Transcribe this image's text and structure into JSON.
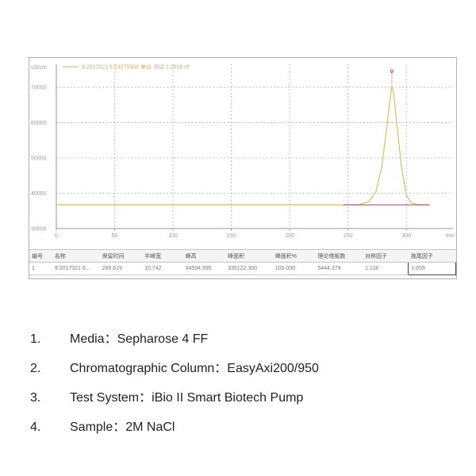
{
  "chart_data": {
    "type": "line",
    "legend": [
      "9:2017021 6 13275504 单位 测试 1 2016.rtf"
    ],
    "ylabel": "uS/cm",
    "xlabel": "min",
    "y_ticks": [
      "70000",
      "60000",
      "50000",
      "40000",
      "30000"
    ],
    "y_tick_values": [
      70000,
      60000,
      50000,
      40000,
      30000
    ],
    "x_ticks": [
      "0",
      "50",
      "100",
      "150",
      "200",
      "250",
      "300"
    ],
    "x_tick_values": [
      0,
      50,
      100,
      150,
      200,
      250,
      300
    ],
    "xlim": [
      0,
      340
    ],
    "ylim": [
      30000,
      76500
    ],
    "grid": true,
    "series": [
      {
        "name": "9:2017021 6 13275504 单位 测试 1 2016.rtf",
        "color": "#d8c570",
        "x": [
          0,
          248,
          260,
          268,
          274,
          279,
          283,
          286,
          287.6,
          289,
          292,
          296,
          300,
          304,
          310,
          320
        ],
        "y": [
          36700,
          36700,
          36800,
          37600,
          40500,
          47500,
          58000,
          66500,
          70500,
          68500,
          59000,
          47000,
          39500,
          37300,
          36750,
          36700
        ]
      },
      {
        "name": "baseline",
        "color": "#b06060",
        "x": [
          246,
          320
        ],
        "y": [
          36700,
          36700
        ]
      }
    ],
    "peak_markers": [
      {
        "x": 287.6,
        "y": 70500,
        "color": "#b03060"
      }
    ]
  },
  "result_table": {
    "headers": [
      "编号",
      "名称",
      "保留时间",
      "半峰宽",
      "峰高",
      "峰面积",
      "峰面积%",
      "理论塔板数",
      "对称因子",
      "拖尾因子"
    ],
    "rows": [
      [
        "1",
        "9:2017021 6...",
        "289.619",
        "10.742",
        "34594.595",
        "335122.300",
        "100.000",
        "5444.379",
        "1.118",
        "1.059"
      ]
    ]
  },
  "specs": [
    {
      "num": "1.",
      "text": "Media：Sepharose 4 FF"
    },
    {
      "num": "2.",
      "text": "Chromatographic Column：EasyAxi200/950"
    },
    {
      "num": "3.",
      "text": "Test System：iBio II Smart Biotech Pump"
    },
    {
      "num": "4.",
      "text": "Sample：2M NaCl"
    }
  ]
}
